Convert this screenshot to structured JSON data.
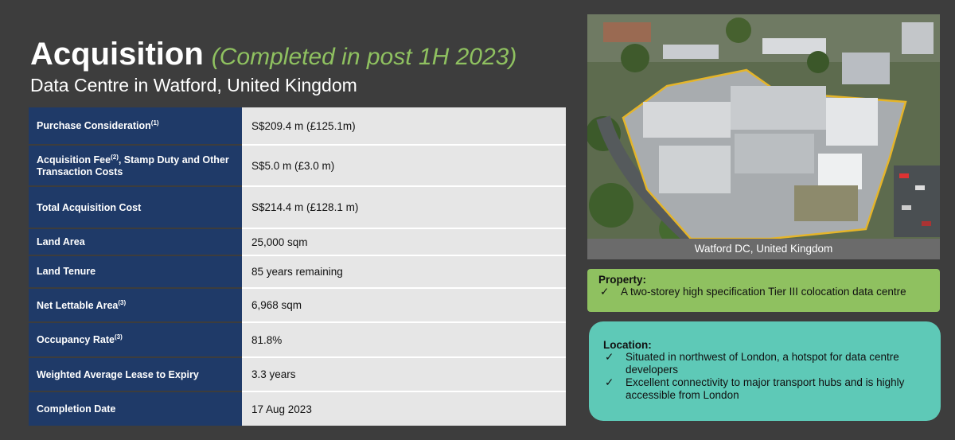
{
  "header": {
    "title": "Acquisition",
    "title_sub": "(Completed in post 1H 2023)",
    "subtitle": "Data Centre in Watford, United Kingdom"
  },
  "facts": [
    {
      "label": "Purchase Consideration",
      "sup": "(1)",
      "value": "S$209.4 m (£125.1m)"
    },
    {
      "label": "Acquisition Fee",
      "sup": "(2)",
      "label_rest": ", Stamp Duty and Other Transaction Costs",
      "value": "S$5.0 m (£3.0 m)"
    },
    {
      "label": "Total Acquisition Cost",
      "value": "S$214.4 m (£128.1 m)"
    },
    {
      "label": "Land Area",
      "value": "25,000 sqm"
    },
    {
      "label": "Land Tenure",
      "value": "85 years remaining"
    },
    {
      "label": "Net Lettable Area",
      "sup": "(3)",
      "value": "6,968 sqm"
    },
    {
      "label": "Occupancy Rate",
      "sup": "(3)",
      "value": "81.8%"
    },
    {
      "label": "Weighted Average Lease to Expiry",
      "value": "3.3 years"
    },
    {
      "label": "Completion Date",
      "value": "17 Aug 2023"
    }
  ],
  "photo": {
    "caption": "Watford DC, United Kingdom"
  },
  "property": {
    "heading": "Property:",
    "check": "✓",
    "items": [
      "A two-storey high specification Tier III colocation data centre"
    ]
  },
  "location": {
    "heading": "Location:",
    "check": "✓",
    "items": [
      "Situated in northwest of London, a hotspot for data centre developers",
      "Excellent connectivity to major transport hubs and is highly accessible from London"
    ]
  },
  "colors": {
    "background": "#3d3d3d",
    "label_fill": "#1f3a68",
    "accent_green": "#8fc160",
    "accent_teal": "#5ec9b7"
  }
}
